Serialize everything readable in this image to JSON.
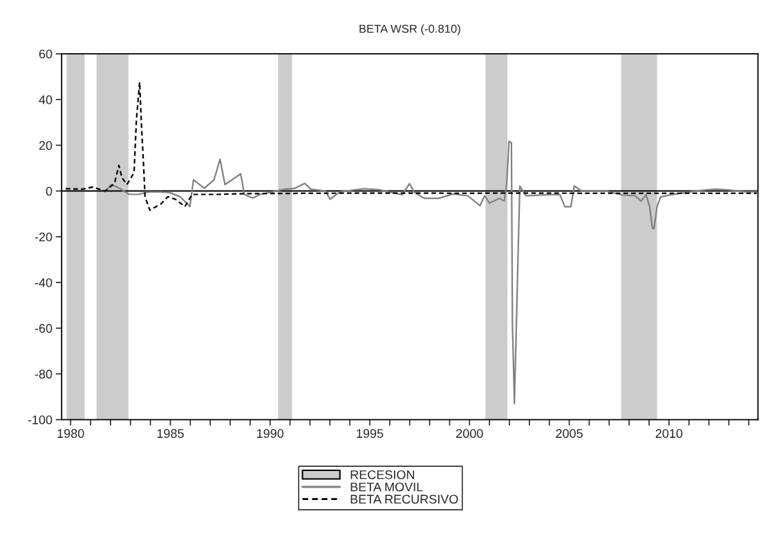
{
  "chart_data": {
    "type": "line",
    "title": "BETA WSR (-0.810)",
    "xlim": [
      1979.55,
      2014.46
    ],
    "ylim": [
      -100,
      60
    ],
    "xticks": [
      1980,
      {
        "value": 1981,
        "label": null
      },
      {
        "value": 1982,
        "label": null
      },
      {
        "value": 1983,
        "label": null
      },
      {
        "value": 1984,
        "label": null
      },
      1985,
      {
        "value": 1986,
        "label": null
      },
      {
        "value": 1987,
        "label": null
      },
      {
        "value": 1988,
        "label": null
      },
      {
        "value": 1989,
        "label": null
      },
      1990,
      {
        "value": 1991,
        "label": null
      },
      {
        "value": 1992,
        "label": null
      },
      {
        "value": 1993,
        "label": null
      },
      {
        "value": 1994,
        "label": null
      },
      1995,
      {
        "value": 1996,
        "label": null
      },
      {
        "value": 1997,
        "label": null
      },
      {
        "value": 1998,
        "label": null
      },
      {
        "value": 1999,
        "label": null
      },
      2000,
      {
        "value": 2001,
        "label": null
      },
      {
        "value": 2002,
        "label": null
      },
      {
        "value": 2003,
        "label": null
      },
      {
        "value": 2004,
        "label": null
      },
      2005,
      {
        "value": 2006,
        "label": null
      },
      {
        "value": 2007,
        "label": null
      },
      {
        "value": 2008,
        "label": null
      },
      {
        "value": 2009,
        "label": null
      },
      2010,
      {
        "value": 2011,
        "label": null
      },
      {
        "value": 2012,
        "label": null
      },
      {
        "value": 2013,
        "label": null
      },
      {
        "value": 2014,
        "label": null
      }
    ],
    "yticks": [
      -100,
      -80,
      -60,
      -40,
      -20,
      0,
      20,
      40,
      60
    ],
    "grid": false,
    "legend": "bottom",
    "ref_lines": [
      {
        "axis": "y",
        "value": 0,
        "color": "#000000",
        "line_style": "solid"
      }
    ],
    "bands": [
      {
        "axis": "x",
        "from": 1979.8,
        "to": 1980.7,
        "label": "RECESION",
        "color": "#cccccc"
      },
      {
        "axis": "x",
        "from": 1981.3,
        "to": 1982.9,
        "color": "#cccccc"
      },
      {
        "axis": "x",
        "from": 1990.4,
        "to": 1991.1,
        "color": "#cccccc"
      },
      {
        "axis": "x",
        "from": 2000.8,
        "to": 2001.9,
        "color": "#cccccc"
      },
      {
        "axis": "x",
        "from": 2007.6,
        "to": 2009.4,
        "color": "#cccccc"
      }
    ],
    "series": [
      {
        "name": "BETA MOVIL",
        "color": "#808080",
        "line_style": "solid",
        "x": [
          1981.73,
          1982.03,
          1982.45,
          1982.94,
          1983.4,
          1983.9,
          1984.5,
          1984.97,
          1985.49,
          1985.73,
          1985.98,
          1986.16,
          1986.7,
          1987.19,
          1987.49,
          1987.74,
          1988.53,
          1988.71,
          1989.13,
          1989.5,
          1990.1,
          1990.76,
          1991.25,
          1991.74,
          1992.04,
          1992.77,
          1993.01,
          1993.5,
          1994.71,
          1995.44,
          1996.63,
          1996.99,
          1997.23,
          1997.72,
          1998.45,
          1999.18,
          1999.91,
          2000.52,
          2000.76,
          2001.0,
          2001.5,
          2001.74,
          2001.86,
          2001.98,
          2002.1,
          2002.15,
          2002.25,
          2002.35,
          2002.45,
          2002.52,
          2002.83,
          2004.05,
          2004.53,
          2004.78,
          2005.08,
          2005.25,
          2005.62,
          2006.84,
          2007.67,
          2008.3,
          2008.6,
          2008.85,
          2009.03,
          2009.17,
          2009.25,
          2009.4,
          2009.58,
          2010.12,
          2011.34,
          2012.32,
          2012.92,
          2013.77,
          2014.4
        ],
        "values": [
          -0.4,
          2.8,
          1.2,
          -1.5,
          -1.5,
          -0.4,
          -0.4,
          -0.7,
          -2.5,
          -4.6,
          -6.8,
          4.9,
          1.2,
          4.9,
          13.9,
          2.8,
          7.5,
          -1.5,
          -3.1,
          -1.5,
          -0.4,
          0.8,
          1.2,
          3.3,
          0.8,
          0,
          -3.6,
          -0.4,
          1.0,
          0.6,
          -1.6,
          3.2,
          -0.5,
          -3.2,
          -3.2,
          -1.3,
          -2.1,
          -6.4,
          -2.1,
          -5.3,
          -3.2,
          -4.4,
          2.7,
          21.7,
          21,
          -58,
          -93,
          -58,
          -22,
          2.2,
          -2.1,
          -1.6,
          -1.6,
          -6.9,
          -6.9,
          2.2,
          0,
          0,
          -1.8,
          -2.1,
          -4.4,
          -1.6,
          -6.9,
          -16.4,
          -16.4,
          -6.9,
          -2.6,
          -1.6,
          0,
          0.8,
          0.5,
          -0.3,
          -0.3
        ]
      },
      {
        "name": "BETA RECURSIVO",
        "color": "#000000",
        "line_style": "dashed",
        "x": [
          1979.75,
          1980.6,
          1981.1,
          1981.73,
          1982.2,
          1982.42,
          1982.57,
          1982.82,
          1983.18,
          1983.3,
          1983.46,
          1983.55,
          1983.67,
          1983.73,
          1983.97,
          1984.52,
          1984.88,
          1985.25,
          1985.73,
          1986.09,
          1987.34,
          1988.5,
          1992,
          1996,
          2000,
          2002,
          2006,
          2010,
          2014.4
        ],
        "values": [
          1,
          0.8,
          1.7,
          0,
          3.3,
          11.2,
          5.9,
          2.8,
          8,
          31.3,
          47.6,
          29.2,
          9.1,
          -2.5,
          -8.4,
          -5.7,
          -2.5,
          -3.6,
          -6.8,
          -1.5,
          -1.5,
          -1.2,
          -1.0,
          -0.9,
          -1.0,
          -0.9,
          -1.0,
          -1.0,
          -1.0
        ]
      }
    ]
  }
}
